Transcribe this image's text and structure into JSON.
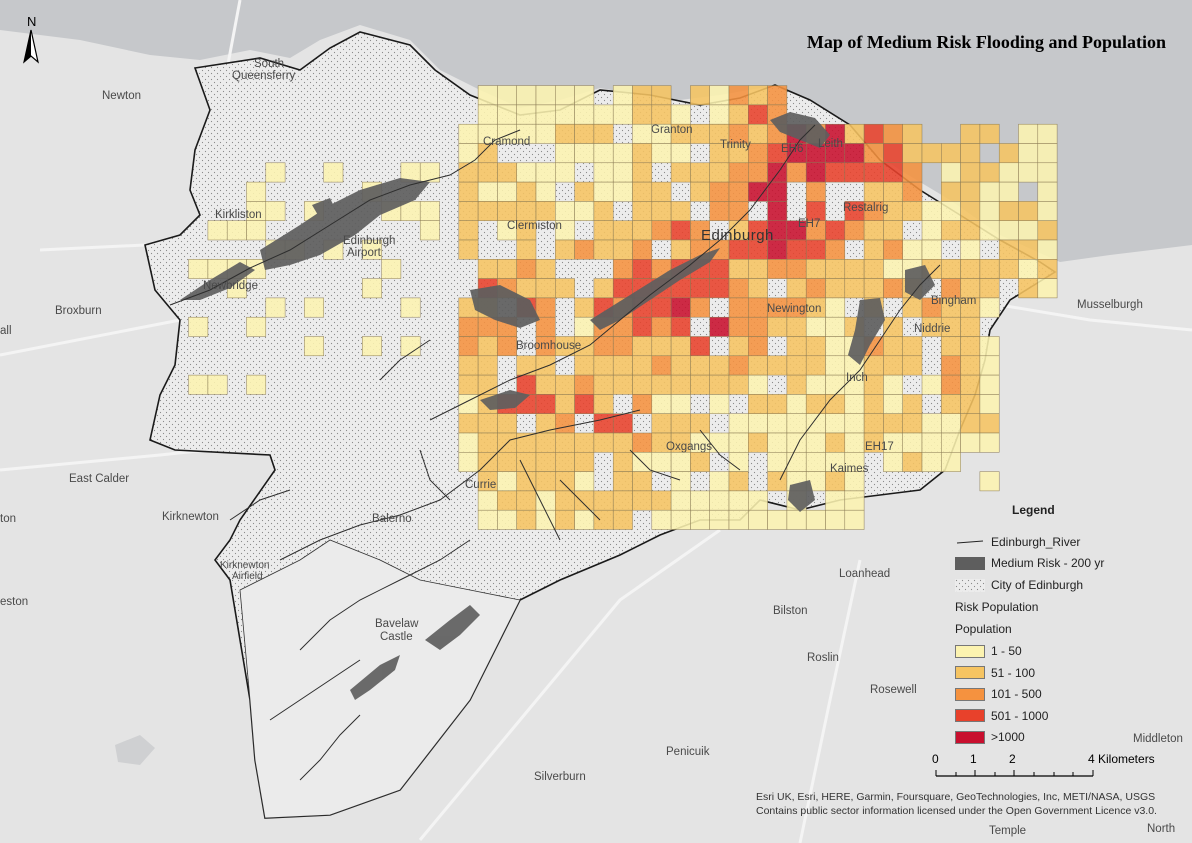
{
  "title": "Map of Medium Risk Flooding and Population",
  "north_label": "N",
  "colors": {
    "land": "#e4e4e4",
    "water": "#c6c8cb",
    "boundary": "#222222",
    "flood": "#5e5e5e",
    "river": "#2e2e2e",
    "bin1": "#fcf3b0",
    "bin2": "#f6c462",
    "bin3": "#f5923f",
    "bin4": "#e8412b",
    "bin5": "#c80f2e"
  },
  "places": {
    "south_queensferry": "South Queensferry",
    "south": "South",
    "queensferry": "Queensferry",
    "newton": "Newton",
    "cramond": "Cramond",
    "granton": "Granton",
    "trinity": "Trinity",
    "eh6": "EH6",
    "leith": "Leith",
    "kirkliston": "Kirkliston",
    "clermiston": "Clermiston",
    "edinburgh": "Edinburgh",
    "eh7": "EH7",
    "restalrig": "Restalrig",
    "edinburgh_airport_1": "Edinburgh",
    "edinburgh_airport_2": "Airport",
    "newbridge": "Newbridge",
    "broxburn": "Broxburn",
    "all": "all",
    "newington": "Newington",
    "brunstane": "Bingham",
    "niddrie": "Niddrie",
    "musselburgh": "Musselburgh",
    "broomhouse": "Broomhouse",
    "inch": "Inch",
    "oxgangs": "Oxgangs",
    "eh17": "EH17",
    "east_calder": "East Calder",
    "currie": "Currie",
    "kaimes": "Kaimes",
    "kirknewton": "Kirknewton",
    "ton": "ton",
    "balerno": "Balerno",
    "kirknewton_airfield_1": "Kirknewton",
    "kirknewton_airfield_2": "Airfield",
    "loanhead": "Loanhead",
    "eston": "eston",
    "bavelaw_1": "Bavelaw",
    "bavelaw_2": "Castle",
    "bilston": "Bilston",
    "roslin": "Roslin",
    "rosewell": "Rosewell",
    "penicuik": "Penicuik",
    "silverburn": "Silverburn",
    "temple": "Temple",
    "north_middleton_1": "North",
    "north_middleton_2": "Middleton"
  },
  "legend": {
    "title": "Legend",
    "river": "Edinburgh_River",
    "flood": "Medium Risk - 200 yr",
    "city": "City of Edinburgh",
    "risk_population": "Risk Population",
    "population": "Population",
    "bins": [
      {
        "label": "1 - 50",
        "color": "#fcf3b0"
      },
      {
        "label": "51 - 100",
        "color": "#f6c462"
      },
      {
        "label": "101 - 500",
        "color": "#f5923f"
      },
      {
        "label": "501 - 1000",
        "color": "#e8412b"
      },
      {
        "label": ">1000",
        "color": "#c80f2e"
      }
    ]
  },
  "scale_bar": {
    "ticks": [
      "0",
      "1",
      "2",
      "4"
    ],
    "unit": "Kilometers"
  },
  "attribution": {
    "line1": "Esri UK, Esri, HERE, Garmin, Foursquare, GeoTechnologies, Inc, METI/NASA, USGS",
    "line2": "Contains public sector information licensed under the Open Government Licence v3.0."
  }
}
